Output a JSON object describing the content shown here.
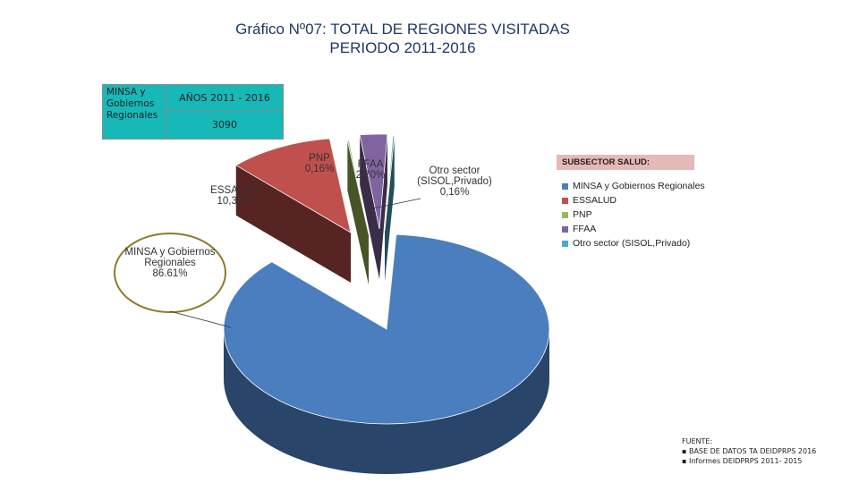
{
  "title": {
    "line1": "Gráfico Nº07: TOTAL DE REGIONES VISITADAS",
    "line2": "PERIODO 2011-2016"
  },
  "summary_table": {
    "label": "MINSA y Gobiernos Regionales",
    "header": "AÑOS 2011 - 2016",
    "value": "3090",
    "color": "#17b8b8"
  },
  "legend": {
    "heading": "SUBSECTOR SALUD:",
    "heading_color": "#e6b8b7"
  },
  "chart_data": {
    "type": "pie",
    "title": "TOTAL DE REGIONES VISITADAS",
    "slices": [
      {
        "name": "MINSA y Gobiernos Regionales",
        "callout": [
          "MINSA y Gobiernos",
          "Regionales"
        ],
        "percent_label": "86.61%",
        "value": 86.61,
        "color": "#4a7ebf"
      },
      {
        "name": "ESSALUD",
        "callout": [
          "ESSALUD"
        ],
        "percent_label": "10,37%",
        "value": 10.37,
        "color": "#c0504d"
      },
      {
        "name": "PNP",
        "callout": [
          "PNP"
        ],
        "percent_label": "0,16%",
        "value": 0.16,
        "color": "#9bbb59"
      },
      {
        "name": "FFAA",
        "callout": [
          "FFAA"
        ],
        "percent_label": "2,70%",
        "value": 2.7,
        "color": "#8064a2"
      },
      {
        "name": "Otro sector  (SISOL,Privado)",
        "callout": [
          "Otro sector",
          "(SISOL,Privado)"
        ],
        "percent_label": "0,16%",
        "value": 0.16,
        "color": "#4bacc6"
      }
    ]
  },
  "source": {
    "heading": "FUENTE:",
    "items": [
      "BASE DE DATOS TA DEIDPRPS 2016",
      "Informes DEIDPRPS 2011- 2015"
    ]
  }
}
